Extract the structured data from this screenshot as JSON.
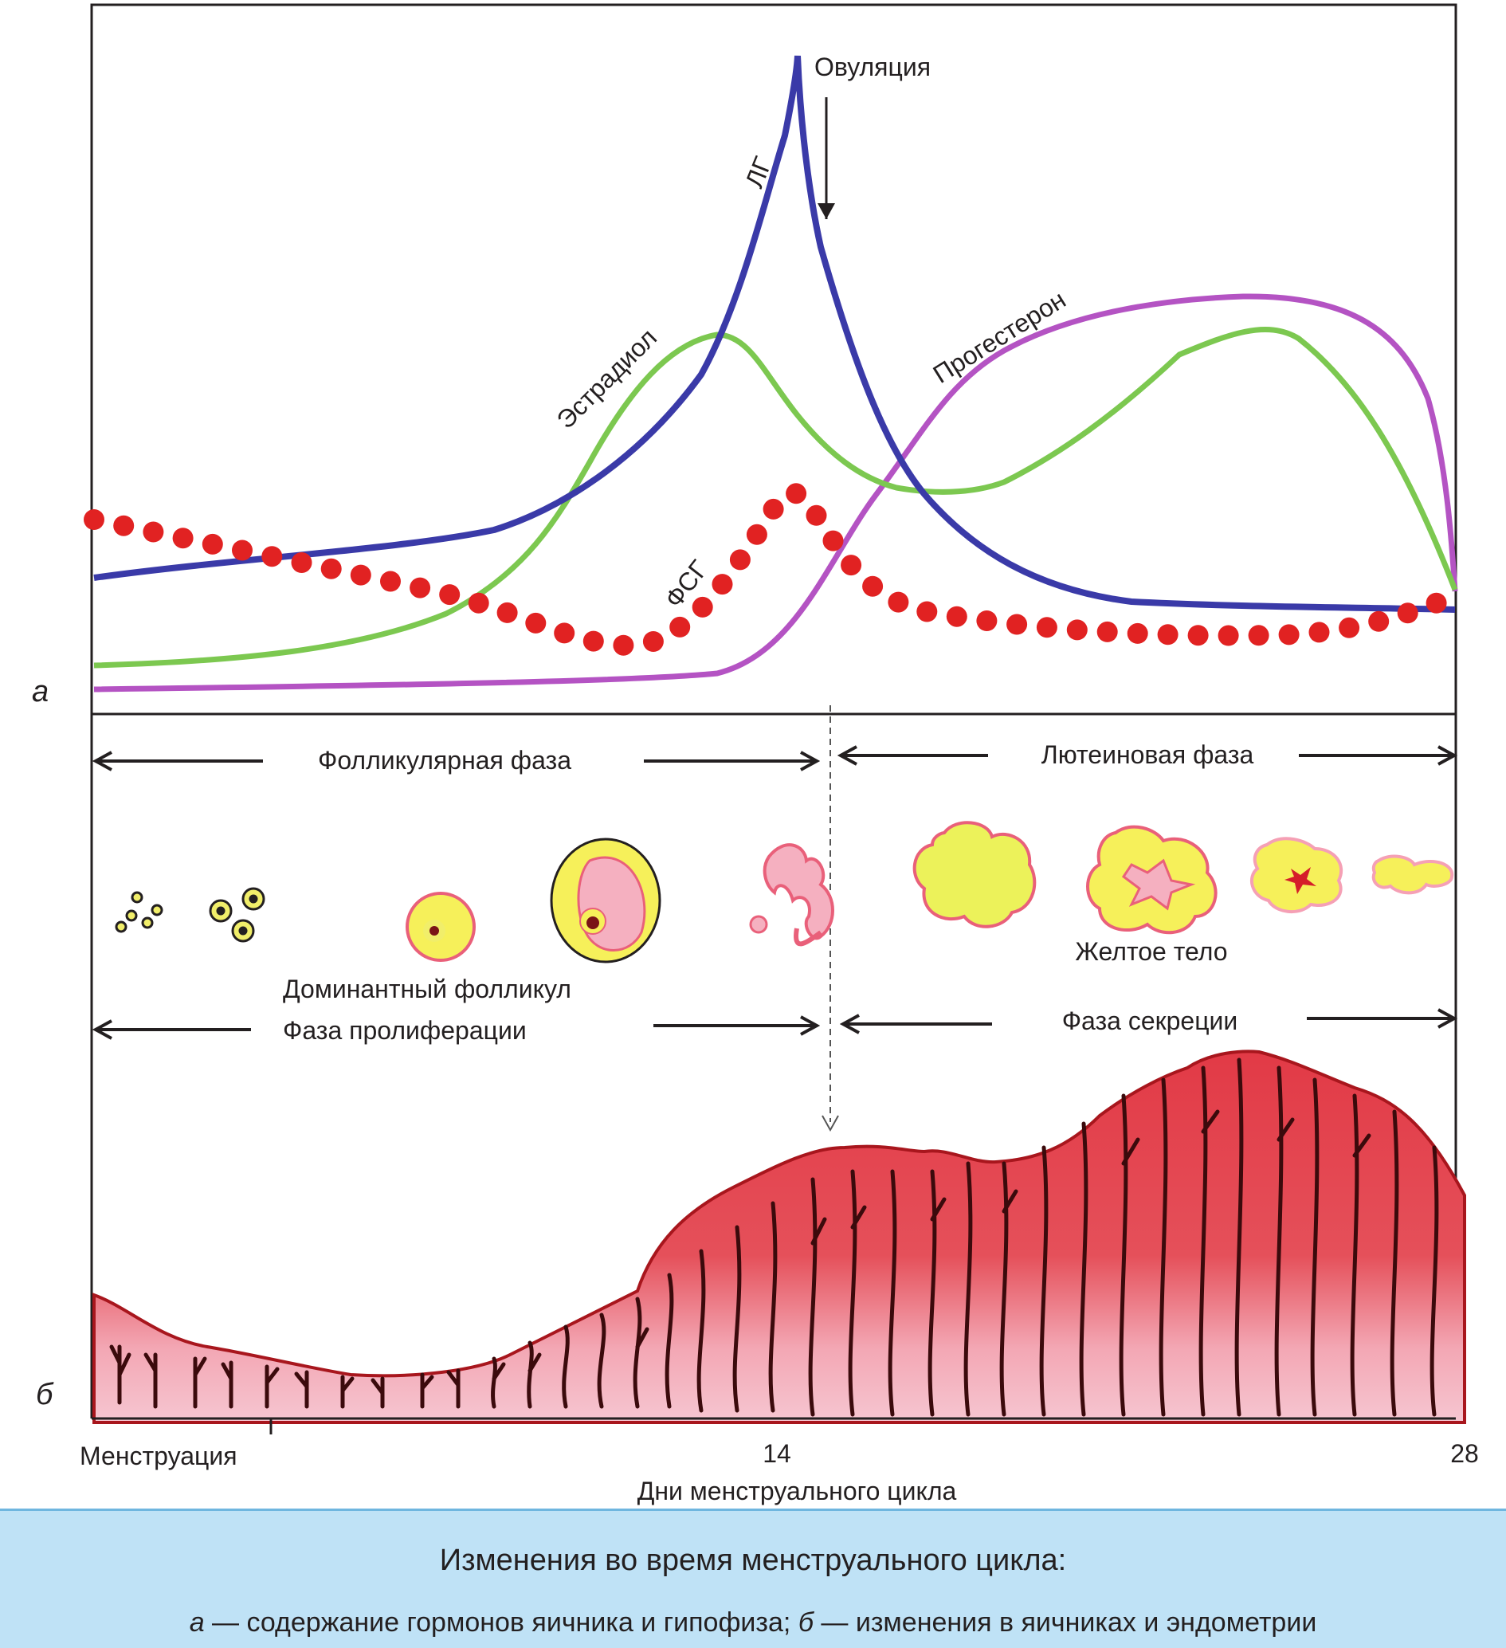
{
  "panel_a": {
    "letter": "а",
    "curve_labels": {
      "lh": "ЛГ",
      "estradiol": "Эстрадиол",
      "progesterone": "Прогестерон",
      "fsh": "ФСГ"
    },
    "ovulation_label": "Овуляция",
    "colors": {
      "lh": "#3a3aa8",
      "estradiol": "#7cc850",
      "progesterone": "#b453c3",
      "fsh": "#e12222"
    }
  },
  "panel_b": {
    "letter": "б",
    "ovary_phases": {
      "follicular": "Фолликулярная фаза",
      "luteal": "Лютеиновая фаза"
    },
    "ovary_labels": {
      "dominant_follicle": "Доминантный фолликул",
      "corpus_luteum": "Желтое тело"
    },
    "endometrium_phases": {
      "proliferation": "Фаза пролиферации",
      "secretion": "Фаза секреции"
    }
  },
  "axis": {
    "start_label": "Менструация",
    "mid_label": "14",
    "end_label": "28",
    "title": "Дни менструального цикла"
  },
  "caption": {
    "title": "Изменения во время менструального цикла:",
    "letter_a": "а",
    "text_a": " — содержание гормонов яичника и гипофиза; ",
    "letter_b": "б",
    "text_b": " — изменения в яичниках и эндометрии"
  }
}
